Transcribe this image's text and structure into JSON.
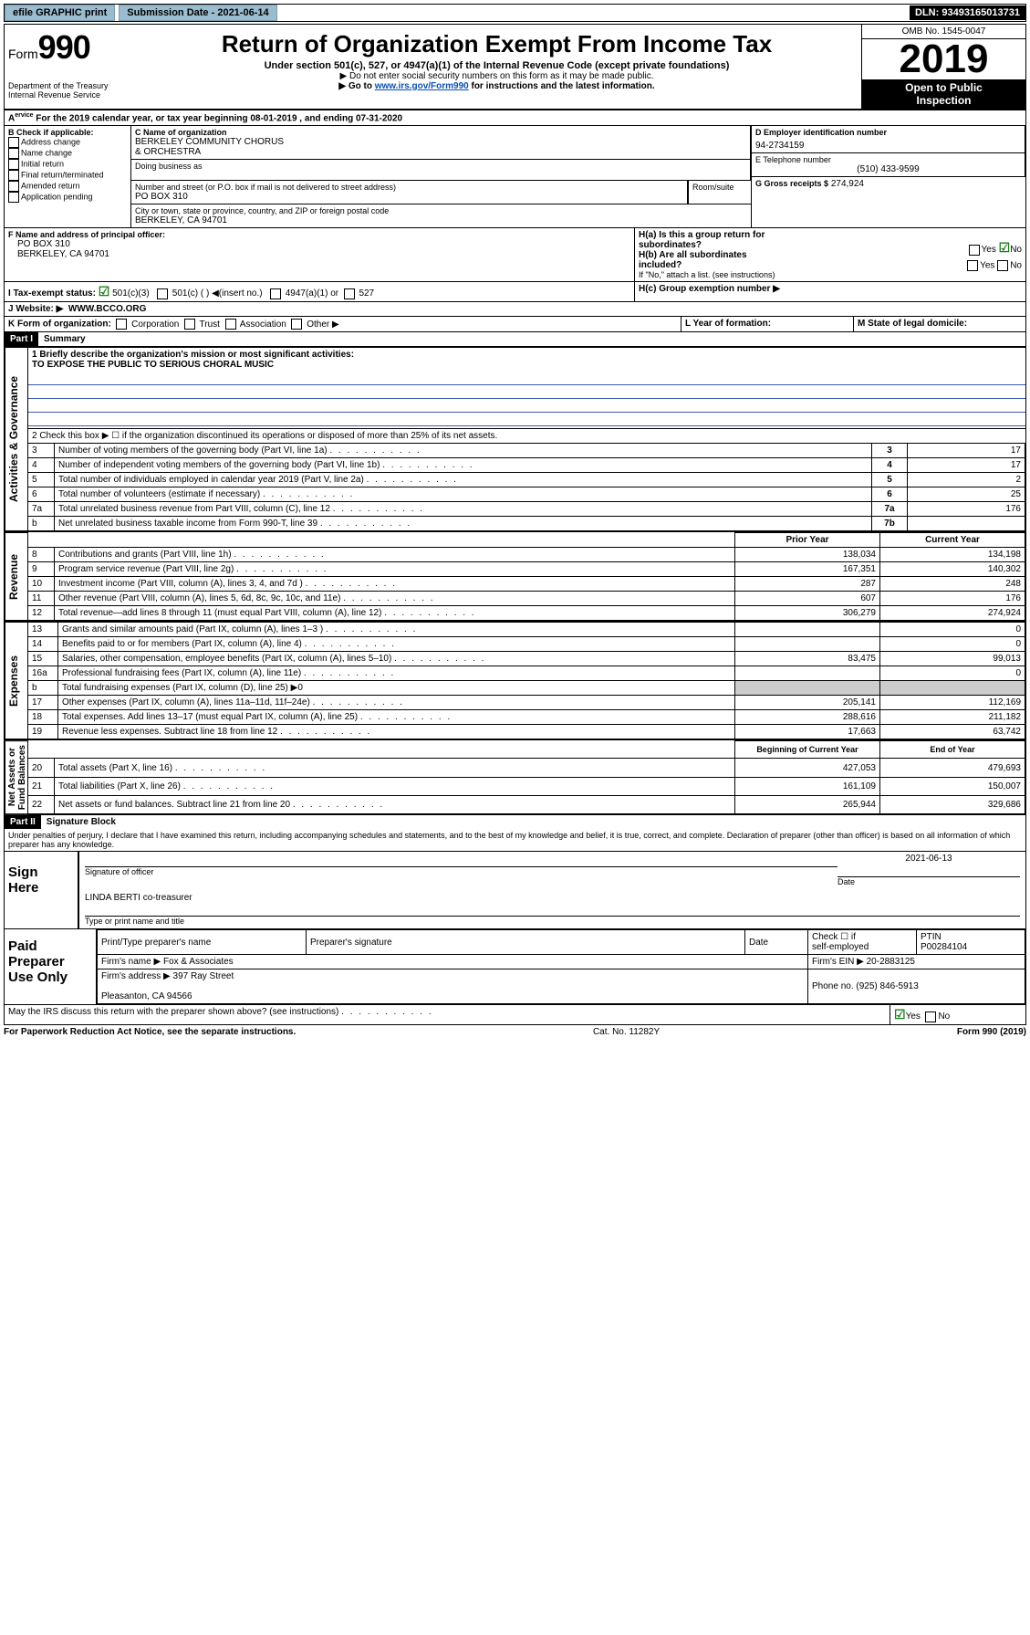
{
  "topbar": {
    "efile": "efile GRAPHIC print",
    "subdate_label": "Submission Date - ",
    "subdate": "2021-06-14",
    "dln_label": "DLN: ",
    "dln": "93493165013731"
  },
  "head": {
    "form_label": "Form",
    "form_num": "990",
    "dept": "Department of the Treasury\nInternal Revenue Service",
    "title": "Return of Organization Exempt From Income Tax",
    "subtitle": "Under section 501(c), 527, or 4947(a)(1) of the Internal Revenue Code (except private foundations)",
    "note1": "▶ Do not enter social security numbers on this form as it may be made public.",
    "note2_pre": "▶ Go to ",
    "note2_link": "www.irs.gov/Form990",
    "note2_post": " for instructions and the latest information.",
    "omb": "OMB No. 1545-0047",
    "year": "2019",
    "open": "Open to Public\nInspection"
  },
  "periodA": "For the 2019 calendar year, or tax year beginning 08-01-2019     , and ending 07-31-2020",
  "boxB": {
    "label": "B Check if applicable:",
    "items": [
      "Address change",
      "Name change",
      "Initial return",
      "Final return/terminated",
      "Amended return",
      "Application pending"
    ]
  },
  "boxC": {
    "label": "C Name of organization",
    "name": "BERKELEY COMMUNITY CHORUS\n& ORCHESTRA",
    "dba_label": "Doing business as",
    "addr_label": "Number and street (or P.O. box if mail is not delivered to street address)",
    "room": "Room/suite",
    "addr": "PO BOX 310",
    "city_label": "City or town, state or province, country, and ZIP or foreign postal code",
    "city": "BERKELEY, CA  94701"
  },
  "boxD": {
    "label": "D Employer identification number",
    "val": "94-2734159"
  },
  "boxE": {
    "label": "E Telephone number",
    "val": "(510) 433-9599"
  },
  "boxG": {
    "label": "G Gross receipts $",
    "val": "274,924"
  },
  "boxF": {
    "label": "F  Name and address of principal officer:",
    "addr": "PO BOX 310\nBERKELEY, CA  94701"
  },
  "boxH": {
    "a": "H(a)  Is this a group return for\n         subordinates?",
    "b": "H(b)  Are all subordinates\n         included?",
    "b_note": "If \"No,\" attach a list. (see instructions)",
    "c": "H(c)  Group exemption number ▶",
    "yes": "Yes",
    "no": "No"
  },
  "boxI": {
    "label": "I   Tax-exempt status:",
    "c3": "501(c)(3)",
    "c": "501(c) (  ) ◀(insert no.)",
    "a1": "4947(a)(1) or",
    "c527": "527"
  },
  "boxJ": {
    "label": "J   Website: ▶",
    "val": "WWW.BCCO.ORG"
  },
  "boxK": {
    "label": "K Form of organization:",
    "opts": [
      "Corporation",
      "Trust",
      "Association",
      "Other ▶"
    ]
  },
  "boxL": {
    "label": "L Year of formation:"
  },
  "boxM": {
    "label": "M State of legal domicile:"
  },
  "part1": {
    "bar": "Part I",
    "title": "Summary",
    "q1": "1  Briefly describe the organization's mission or most significant activities:\nTO EXPOSE THE PUBLIC TO SERIOUS CHORAL MUSIC",
    "q2": "2   Check this box ▶ ☐  if the organization discontinued its operations or disposed of more than 25% of its net assets.",
    "rows": [
      {
        "n": "3",
        "t": "Number of voting members of the governing body (Part VI, line 1a)",
        "box": "3",
        "v": "17"
      },
      {
        "n": "4",
        "t": "Number of independent voting members of the governing body (Part VI, line 1b)",
        "box": "4",
        "v": "17"
      },
      {
        "n": "5",
        "t": "Total number of individuals employed in calendar year 2019 (Part V, line 2a)",
        "box": "5",
        "v": "2"
      },
      {
        "n": "6",
        "t": "Total number of volunteers (estimate if necessary)",
        "box": "6",
        "v": "25"
      },
      {
        "n": "7a",
        "t": "Total unrelated business revenue from Part VIII, column (C), line 12",
        "box": "7a",
        "v": "176"
      },
      {
        "n": "b",
        "t": "Net unrelated business taxable income from Form 990-T, line 39",
        "box": "7b",
        "v": ""
      }
    ],
    "tab_gov": "Activities & Governance",
    "th_prior": "Prior Year",
    "th_curr": "Current Year",
    "rev_tab": "Revenue",
    "rev": [
      {
        "n": "8",
        "t": "Contributions and grants (Part VIII, line 1h)",
        "p": "138,034",
        "c": "134,198"
      },
      {
        "n": "9",
        "t": "Program service revenue (Part VIII, line 2g)",
        "p": "167,351",
        "c": "140,302"
      },
      {
        "n": "10",
        "t": "Investment income (Part VIII, column (A), lines 3, 4, and 7d )",
        "p": "287",
        "c": "248"
      },
      {
        "n": "11",
        "t": "Other revenue (Part VIII, column (A), lines 5, 6d, 8c, 9c, 10c, and 11e)",
        "p": "607",
        "c": "176"
      },
      {
        "n": "12",
        "t": "Total revenue—add lines 8 through 11 (must equal Part VIII, column (A), line 12)",
        "p": "306,279",
        "c": "274,924"
      }
    ],
    "exp_tab": "Expenses",
    "exp": [
      {
        "n": "13",
        "t": "Grants and similar amounts paid (Part IX, column (A), lines 1–3 )",
        "p": "",
        "c": "0"
      },
      {
        "n": "14",
        "t": "Benefits paid to or for members (Part IX, column (A), line 4)",
        "p": "",
        "c": "0"
      },
      {
        "n": "15",
        "t": "Salaries, other compensation, employee benefits (Part IX, column (A), lines 5–10)",
        "p": "83,475",
        "c": "99,013"
      },
      {
        "n": "16a",
        "t": "Professional fundraising fees (Part IX, column (A), line 11e)",
        "p": "",
        "c": "0"
      },
      {
        "n": "b",
        "t": "Total fundraising expenses (Part IX, column (D), line 25) ▶0",
        "p": "—",
        "c": "—"
      },
      {
        "n": "17",
        "t": "Other expenses (Part IX, column (A), lines 11a–11d, 11f–24e)",
        "p": "205,141",
        "c": "112,169"
      },
      {
        "n": "18",
        "t": "Total expenses. Add lines 13–17 (must equal Part IX, column (A), line 25)",
        "p": "288,616",
        "c": "211,182"
      },
      {
        "n": "19",
        "t": "Revenue less expenses. Subtract line 18 from line 12",
        "p": "17,663",
        "c": "63,742"
      }
    ],
    "na_tab": "Net Assets or\nFund Balances",
    "th_begin": "Beginning of Current Year",
    "th_end": "End of Year",
    "na": [
      {
        "n": "20",
        "t": "Total assets (Part X, line 16)",
        "p": "427,053",
        "c": "479,693"
      },
      {
        "n": "21",
        "t": "Total liabilities (Part X, line 26)",
        "p": "161,109",
        "c": "150,007"
      },
      {
        "n": "22",
        "t": "Net assets or fund balances. Subtract line 21 from line 20",
        "p": "265,944",
        "c": "329,686"
      }
    ]
  },
  "part2": {
    "bar": "Part II",
    "title": "Signature Block",
    "perjury": "Under penalties of perjury, I declare that I have examined this return, including accompanying schedules and statements, and to the best of my knowledge and belief, it is true, correct, and complete. Declaration of preparer (other than officer) is based on all information of which preparer has any knowledge.",
    "sign_here": "Sign\nHere",
    "sig_officer": "Signature of officer",
    "date_label": "Date",
    "date": "2021-06-13",
    "name_title": "LINDA BERTI  co-treasurer",
    "name_note": "Type or print name and title",
    "paid": "Paid\nPreparer\nUse Only",
    "print_label": "Print/Type preparer's name",
    "prep_sig": "Preparer's signature",
    "check_self": "Check ☐ if\nself-employed",
    "ptin_label": "PTIN",
    "ptin": "P00284104",
    "firm_name_label": "Firm's name    ▶",
    "firm_name": "Fox & Associates",
    "firm_ein_label": "Firm's EIN ▶",
    "firm_ein": "20-2883125",
    "firm_addr_label": "Firm's address ▶",
    "firm_addr": "397 Ray Street\n\nPleasanton, CA  94566",
    "phone_label": "Phone no.",
    "phone": "(925) 846-5913",
    "discuss": "May the IRS discuss this return with the preparer shown above? (see instructions)",
    "yes": "Yes",
    "no": "No"
  },
  "foot": {
    "pra": "For Paperwork Reduction Act Notice, see the separate instructions.",
    "cat": "Cat. No. 11282Y",
    "form": "Form 990 (2019)"
  }
}
